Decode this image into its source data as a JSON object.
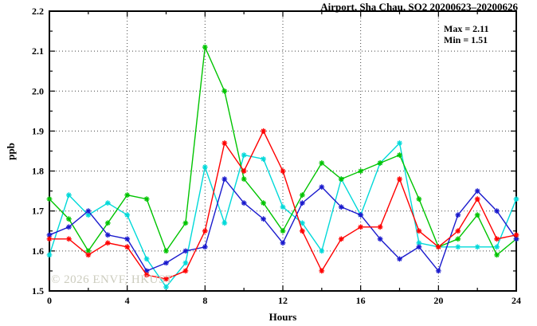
{
  "chart_data": {
    "type": "line",
    "title": "Airport, Sha Chau, SO2 20200623–20200626",
    "xlabel": "Hours",
    "ylabel": "ppb",
    "watermark": "© 2026 ENVF, HKUST",
    "annotations": [
      "Max = 2.11",
      "Min = 1.51"
    ],
    "max": 2.11,
    "min": 1.51,
    "xlim": [
      0,
      24
    ],
    "ylim": [
      1.5,
      2.2
    ],
    "x_ticks": [
      0,
      4,
      8,
      12,
      16,
      20,
      24
    ],
    "x_minor_step": 2,
    "y_ticks": [
      1.5,
      1.6,
      1.7,
      1.8,
      1.9,
      2.0,
      2.1,
      2.2
    ],
    "y_minor_step": 0.05,
    "grid": "dotted",
    "legend_position": "none",
    "x": [
      0,
      1,
      2,
      3,
      4,
      5,
      6,
      7,
      8,
      9,
      10,
      11,
      12,
      13,
      14,
      15,
      16,
      17,
      18,
      19,
      20,
      21,
      22,
      23,
      24
    ],
    "series": [
      {
        "name": "cyan",
        "color": "#00d9d9",
        "values": [
          1.59,
          1.74,
          1.69,
          1.72,
          1.69,
          1.58,
          1.51,
          1.57,
          1.81,
          1.67,
          1.84,
          1.83,
          1.71,
          1.67,
          1.6,
          1.78,
          1.69,
          1.82,
          1.87,
          1.62,
          1.61,
          1.61,
          1.61,
          1.61,
          1.73
        ]
      },
      {
        "name": "green",
        "color": "#00c400",
        "values": [
          1.73,
          1.68,
          1.6,
          1.67,
          1.74,
          1.73,
          1.6,
          1.67,
          2.11,
          2.0,
          1.78,
          1.72,
          1.65,
          1.74,
          1.82,
          1.78,
          1.8,
          1.82,
          1.84,
          1.73,
          1.61,
          1.63,
          1.69,
          1.59,
          1.63
        ]
      },
      {
        "name": "blue",
        "color": "#1a1acd",
        "values": [
          1.64,
          1.66,
          1.7,
          1.64,
          1.63,
          1.55,
          1.57,
          1.6,
          1.61,
          1.78,
          1.72,
          1.68,
          1.62,
          1.72,
          1.76,
          1.71,
          1.69,
          1.63,
          1.58,
          1.61,
          1.55,
          1.69,
          1.75,
          1.7,
          1.63
        ]
      },
      {
        "name": "red",
        "color": "#ff0000",
        "values": [
          1.63,
          1.63,
          1.59,
          1.62,
          1.61,
          1.54,
          1.53,
          1.55,
          1.65,
          1.87,
          1.8,
          1.9,
          1.8,
          1.65,
          1.55,
          1.63,
          1.66,
          1.66,
          1.78,
          1.65,
          1.61,
          1.65,
          1.73,
          1.63,
          1.64
        ]
      }
    ]
  }
}
